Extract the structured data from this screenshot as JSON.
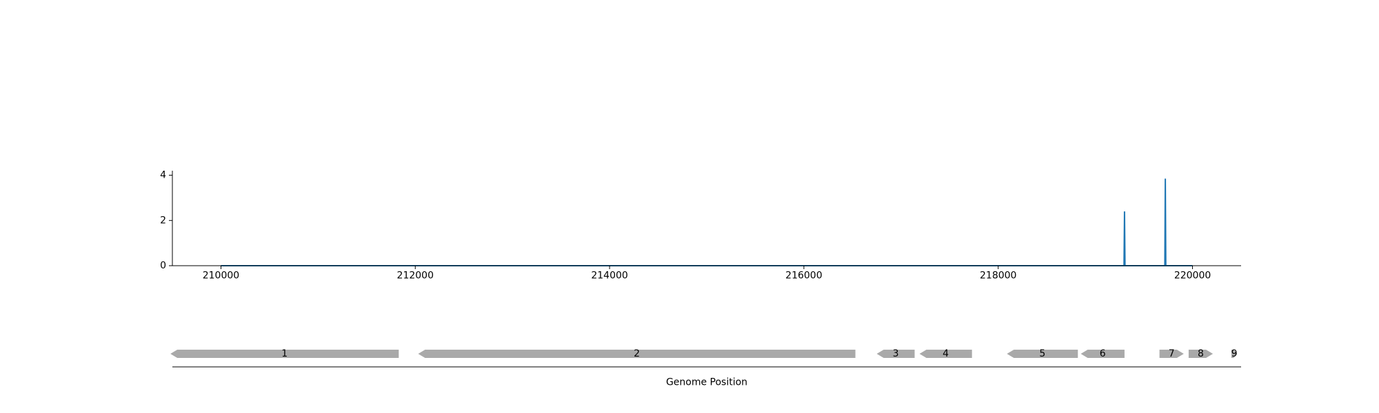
{
  "chart_data": [
    {
      "type": "line",
      "title": "",
      "xlabel": "",
      "ylabel": "",
      "xlim": [
        209500,
        220500
      ],
      "ylim": [
        0,
        4.2
      ],
      "xticks": [
        210000,
        212000,
        214000,
        216000,
        218000,
        220000
      ],
      "xtick_labels": [
        "210000",
        "212000",
        "214000",
        "216000",
        "218000",
        "220000"
      ],
      "yticks": [
        0,
        2,
        4
      ],
      "ytick_labels": [
        "0",
        "2",
        "4"
      ],
      "grid": false,
      "series": [
        {
          "x": [
            210000,
            219295,
            219300,
            219305,
            219715,
            219720,
            219725,
            220000
          ],
          "values": [
            0,
            0,
            2.4,
            0,
            0,
            3.85,
            0,
            0
          ]
        }
      ]
    },
    {
      "type": "gene-track",
      "xlabel": "Genome Position",
      "xlim": [
        209500,
        220500
      ],
      "genes": [
        {
          "label": "1",
          "start": 209480,
          "end": 211830,
          "strand": "-"
        },
        {
          "label": "2",
          "start": 212030,
          "end": 216530,
          "strand": "-"
        },
        {
          "label": "3",
          "start": 216750,
          "end": 217140,
          "strand": "-"
        },
        {
          "label": "4",
          "start": 217190,
          "end": 217730,
          "strand": "-"
        },
        {
          "label": "5",
          "start": 218090,
          "end": 218820,
          "strand": "-"
        },
        {
          "label": "6",
          "start": 218850,
          "end": 219300,
          "strand": "-"
        },
        {
          "label": "7",
          "start": 219660,
          "end": 219910,
          "strand": "+"
        },
        {
          "label": "8",
          "start": 219960,
          "end": 220210,
          "strand": "+"
        },
        {
          "label": "9",
          "start": 220400,
          "end": 220460,
          "strand": "+"
        }
      ]
    }
  ],
  "colors": {
    "line": "#1f77b4",
    "gene": "#a9a9a9",
    "axis": "#000000"
  }
}
